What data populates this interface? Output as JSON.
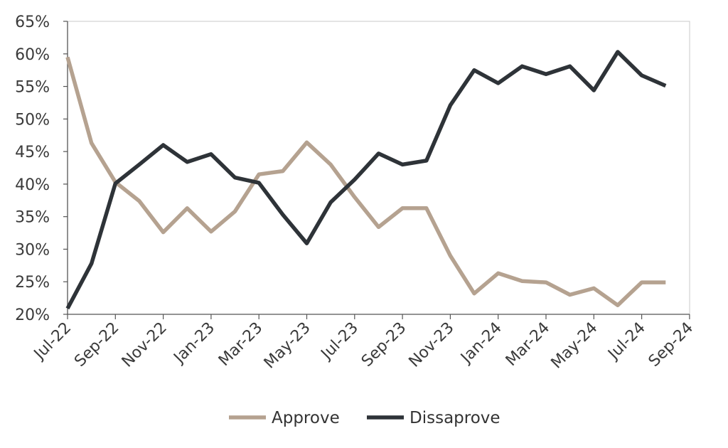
{
  "chart_data": {
    "type": "line",
    "title": "",
    "xlabel": "",
    "ylabel": "",
    "ylim": [
      0.2,
      0.65
    ],
    "y_ticks": [
      "20%",
      "25%",
      "30%",
      "35%",
      "40%",
      "45%",
      "50%",
      "55%",
      "60%",
      "65%"
    ],
    "x_ticks": [
      "Jul-22",
      "Sep-22",
      "Nov-22",
      "Jan-23",
      "Mar-23",
      "May-23",
      "Jul-23",
      "Sep-23",
      "Nov-23",
      "Jan-24",
      "Mar-24",
      "May-24",
      "Jul-24",
      "Sep-24"
    ],
    "x": [
      "2022-07",
      "2022-08",
      "2022-09",
      "2022-10",
      "2022-11",
      "2022-12",
      "2023-01",
      "2023-02",
      "2023-03",
      "2023-04",
      "2023-05",
      "2023-06",
      "2023-07",
      "2023-08",
      "2023-09",
      "2023-10",
      "2023-11",
      "2023-12",
      "2024-01",
      "2024-02",
      "2024-03",
      "2024-04",
      "2024-05",
      "2024-06",
      "2024-07",
      "2024-08"
    ],
    "grid": false,
    "legend_position": "bottom",
    "series": [
      {
        "name": "Approve",
        "color": "#b5a290",
        "values": [
          0.595,
          0.463,
          0.403,
          0.374,
          0.326,
          0.363,
          0.327,
          0.358,
          0.415,
          0.42,
          0.464,
          0.43,
          0.38,
          0.334,
          0.363,
          0.363,
          0.29,
          0.232,
          0.263,
          0.251,
          0.249,
          0.23,
          0.24,
          0.214,
          0.249,
          0.249
        ]
      },
      {
        "name": "Dissaprove",
        "color": "#2e3338",
        "values": [
          0.209,
          0.278,
          0.401,
          0.43,
          0.46,
          0.434,
          0.446,
          0.41,
          0.402,
          0.353,
          0.309,
          0.372,
          0.407,
          0.447,
          0.43,
          0.436,
          0.521,
          0.575,
          0.555,
          0.581,
          0.569,
          0.581,
          0.544,
          0.603,
          0.567,
          0.551
        ]
      }
    ]
  }
}
